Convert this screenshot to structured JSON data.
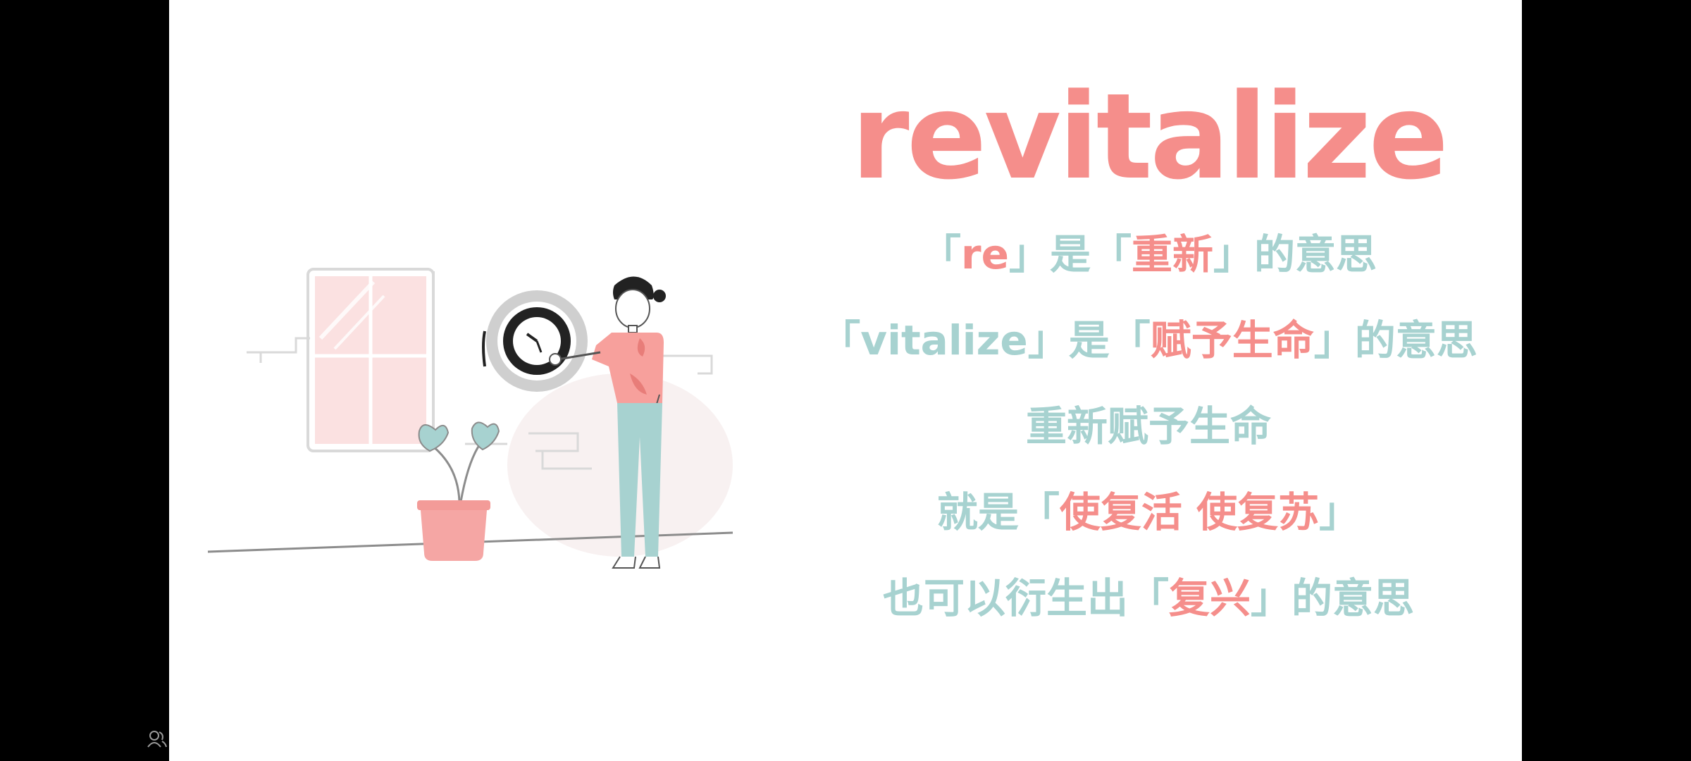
{
  "colors": {
    "accent_pink": "#f58e8b",
    "accent_teal": "#a7d2d0",
    "frame_background": "#000000",
    "slide_background": "#ffffff"
  },
  "title": "revitalize",
  "lines": [
    {
      "segments": [
        {
          "text": "「",
          "color": "teal"
        },
        {
          "text": "re",
          "color": "pink"
        },
        {
          "text": "」是「",
          "color": "teal"
        },
        {
          "text": "重新",
          "color": "pink"
        },
        {
          "text": "」的意思",
          "color": "teal"
        }
      ]
    },
    {
      "segments": [
        {
          "text": "「",
          "color": "teal"
        },
        {
          "text": "vitalize",
          "color": "teal"
        },
        {
          "text": "」是「",
          "color": "teal"
        },
        {
          "text": "赋予生命",
          "color": "pink"
        },
        {
          "text": "」的意思",
          "color": "teal"
        }
      ]
    },
    {
      "segments": [
        {
          "text": "重新赋予生命",
          "color": "teal"
        }
      ]
    },
    {
      "segments": [
        {
          "text": "就是「",
          "color": "teal"
        },
        {
          "text": "使复活 使复苏",
          "color": "pink"
        },
        {
          "text": "」",
          "color": "teal"
        }
      ]
    },
    {
      "segments": [
        {
          "text": "也可以衍生出「",
          "color": "teal"
        },
        {
          "text": "复兴",
          "color": "pink"
        },
        {
          "text": "」的意思",
          "color": "teal"
        }
      ]
    }
  ],
  "icons": {
    "illustration": "woman-hanging-clock-illustration",
    "bottom_left": "user-group-icon"
  }
}
